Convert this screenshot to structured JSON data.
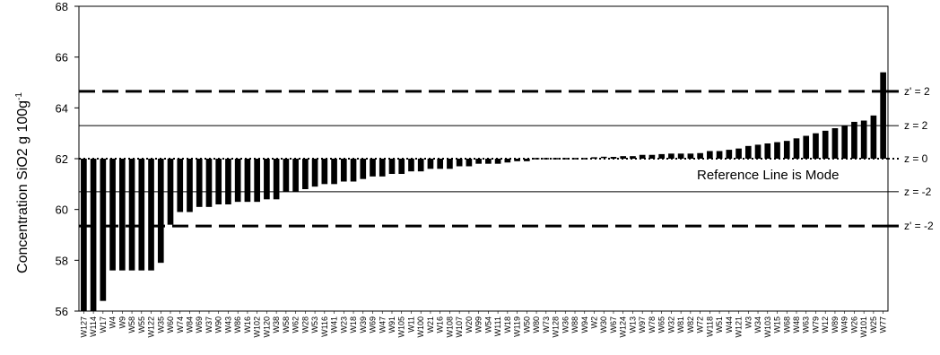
{
  "chart_data": {
    "type": "bar",
    "ylabel": "Concentration SiO2 g 100g",
    "ylabel_superscript": "-1",
    "ylim": [
      56,
      68
    ],
    "yticks": [
      56,
      58,
      60,
      62,
      64,
      66,
      68
    ],
    "baseline": 62.0,
    "annotation": "Reference Line is Mode",
    "categories": [
      "W127",
      "W114",
      "W17",
      "W4",
      "W9",
      "W58",
      "W55",
      "W122",
      "W35",
      "W60",
      "W74",
      "W84",
      "W69",
      "W37",
      "W90",
      "W43",
      "W86",
      "W16",
      "W102",
      "W120",
      "W38",
      "W58",
      "W62",
      "W28",
      "W53",
      "W116",
      "W41",
      "W23",
      "W18",
      "W39",
      "W69",
      "W47",
      "W91",
      "W105",
      "W11",
      "W100",
      "W21",
      "W16",
      "W108",
      "W107",
      "W20",
      "W99",
      "W54",
      "W111",
      "W18",
      "W119",
      "W50",
      "W80",
      "W73",
      "W128",
      "W36",
      "W88",
      "W94",
      "W2",
      "W30",
      "W67",
      "W124",
      "W13",
      "W97",
      "W78",
      "W65",
      "W32",
      "W81",
      "W82",
      "W72",
      "W118",
      "W51",
      "W44",
      "W121",
      "W3",
      "W34",
      "W103",
      "W15",
      "W68",
      "W48",
      "W63",
      "W79",
      "W12",
      "W89",
      "W49",
      "W26",
      "W101",
      "W25",
      "W77"
    ],
    "values": [
      56.0,
      56.0,
      56.4,
      57.6,
      57.6,
      57.6,
      57.6,
      57.6,
      57.9,
      59.4,
      59.9,
      59.9,
      60.1,
      60.1,
      60.2,
      60.2,
      60.3,
      60.3,
      60.3,
      60.4,
      60.4,
      60.7,
      60.7,
      60.8,
      60.9,
      61.0,
      61.0,
      61.1,
      61.1,
      61.2,
      61.3,
      61.3,
      61.4,
      61.4,
      61.5,
      61.5,
      61.6,
      61.6,
      61.6,
      61.7,
      61.7,
      61.8,
      61.8,
      61.8,
      61.85,
      61.9,
      61.9,
      61.95,
      61.95,
      61.97,
      61.98,
      62.0,
      62.0,
      62.03,
      62.05,
      62.07,
      62.1,
      62.1,
      62.15,
      62.15,
      62.18,
      62.2,
      62.2,
      62.2,
      62.22,
      62.3,
      62.3,
      62.35,
      62.4,
      62.5,
      62.55,
      62.6,
      62.65,
      62.7,
      62.8,
      62.9,
      63.0,
      63.1,
      63.2,
      63.3,
      63.45,
      63.5,
      63.7,
      65.4
    ],
    "reference_lines": [
      {
        "value": 64.65,
        "label": "z' = 2",
        "style": "dashed"
      },
      {
        "value": 63.3,
        "label": "z = 2",
        "style": "solid"
      },
      {
        "value": 62.0,
        "label": "z = 0",
        "style": "dotted"
      },
      {
        "value": 60.7,
        "label": "z = -2",
        "style": "solid"
      },
      {
        "value": 59.35,
        "label": "z' = -2",
        "style": "dashed"
      }
    ]
  }
}
